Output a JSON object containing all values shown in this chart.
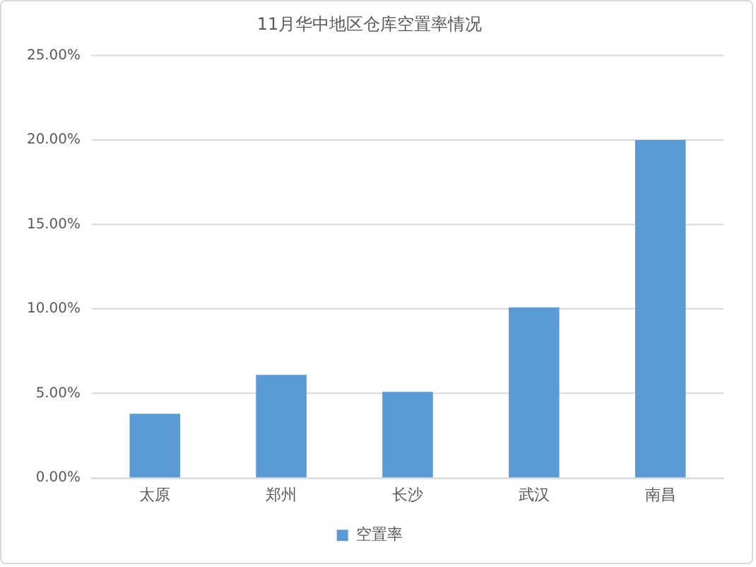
{
  "chart_data": {
    "type": "bar",
    "title": "11月华中地区仓库空置率情况",
    "categories": [
      "太原",
      "郑州",
      "长沙",
      "武汉",
      "南昌"
    ],
    "series": [
      {
        "name": "空置率",
        "color": "#5b9bd5",
        "values": [
          3.8,
          6.1,
          5.1,
          10.1,
          20.0
        ]
      }
    ],
    "ylim": [
      0,
      25
    ],
    "yticks": [
      {
        "value": 0,
        "label": "0.00%"
      },
      {
        "value": 5,
        "label": "5.00%"
      },
      {
        "value": 10,
        "label": "10.00%"
      },
      {
        "value": 15,
        "label": "15.00%"
      },
      {
        "value": 20,
        "label": "20.00%"
      },
      {
        "value": 25,
        "label": "25.00%"
      }
    ],
    "grid": "y",
    "legend": "bottom"
  }
}
